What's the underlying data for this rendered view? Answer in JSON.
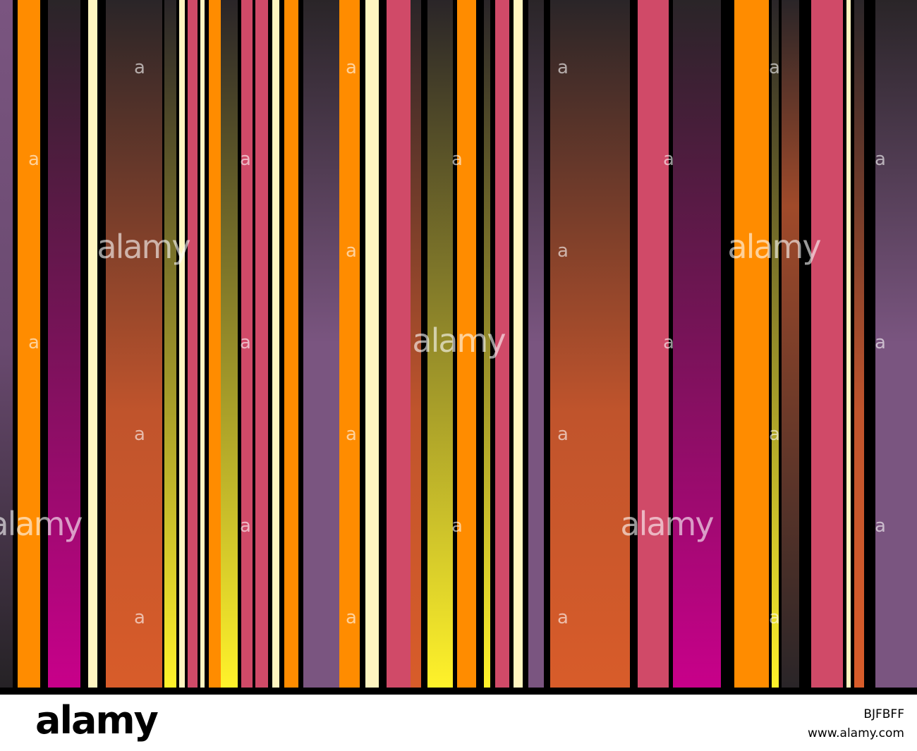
{
  "watermark": {
    "logo": "alamy",
    "mark": "a"
  },
  "footer": {
    "logo": "alamy",
    "image_id": "BJFBFF",
    "url": "www.alamy.com"
  }
}
